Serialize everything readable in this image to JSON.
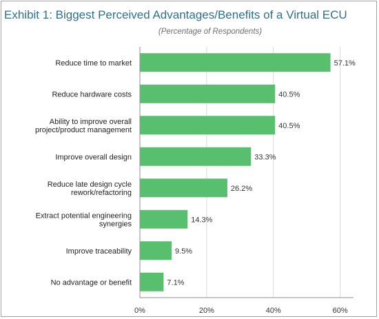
{
  "title": "Exhibit 1: Biggest Perceived Advantages/Benefits of a Virtual ECU",
  "subtitle": "(Percentage of Respondents)",
  "colors": {
    "bar": "#57bf6d",
    "title": "#2f6f8f",
    "grid": "#d9d9d9",
    "axis": "#8c8c8c"
  },
  "chart_data": {
    "type": "bar",
    "orientation": "horizontal",
    "categories": [
      [
        "Reduce time to market"
      ],
      [
        "Reduce hardware costs"
      ],
      [
        "Ability to improve overall",
        "project/product management"
      ],
      [
        "Improve overall design"
      ],
      [
        "Reduce late design cycle",
        "rework/refactoring"
      ],
      [
        "Extract potential engineering",
        "synergies"
      ],
      [
        "Improve traceability"
      ],
      [
        "No advantage or benefit"
      ]
    ],
    "values": [
      57.1,
      40.5,
      40.5,
      33.3,
      26.2,
      14.3,
      9.5,
      7.1
    ],
    "value_labels": [
      "57.1%",
      "40.5%",
      "40.5%",
      "33.3%",
      "26.2%",
      "14.3%",
      "9.5%",
      "7.1%"
    ],
    "xlim": [
      0,
      64
    ],
    "xticks": [
      0,
      20,
      40,
      60
    ],
    "xtick_labels": [
      "0%",
      "20%",
      "40%",
      "60%"
    ],
    "grid": true
  }
}
